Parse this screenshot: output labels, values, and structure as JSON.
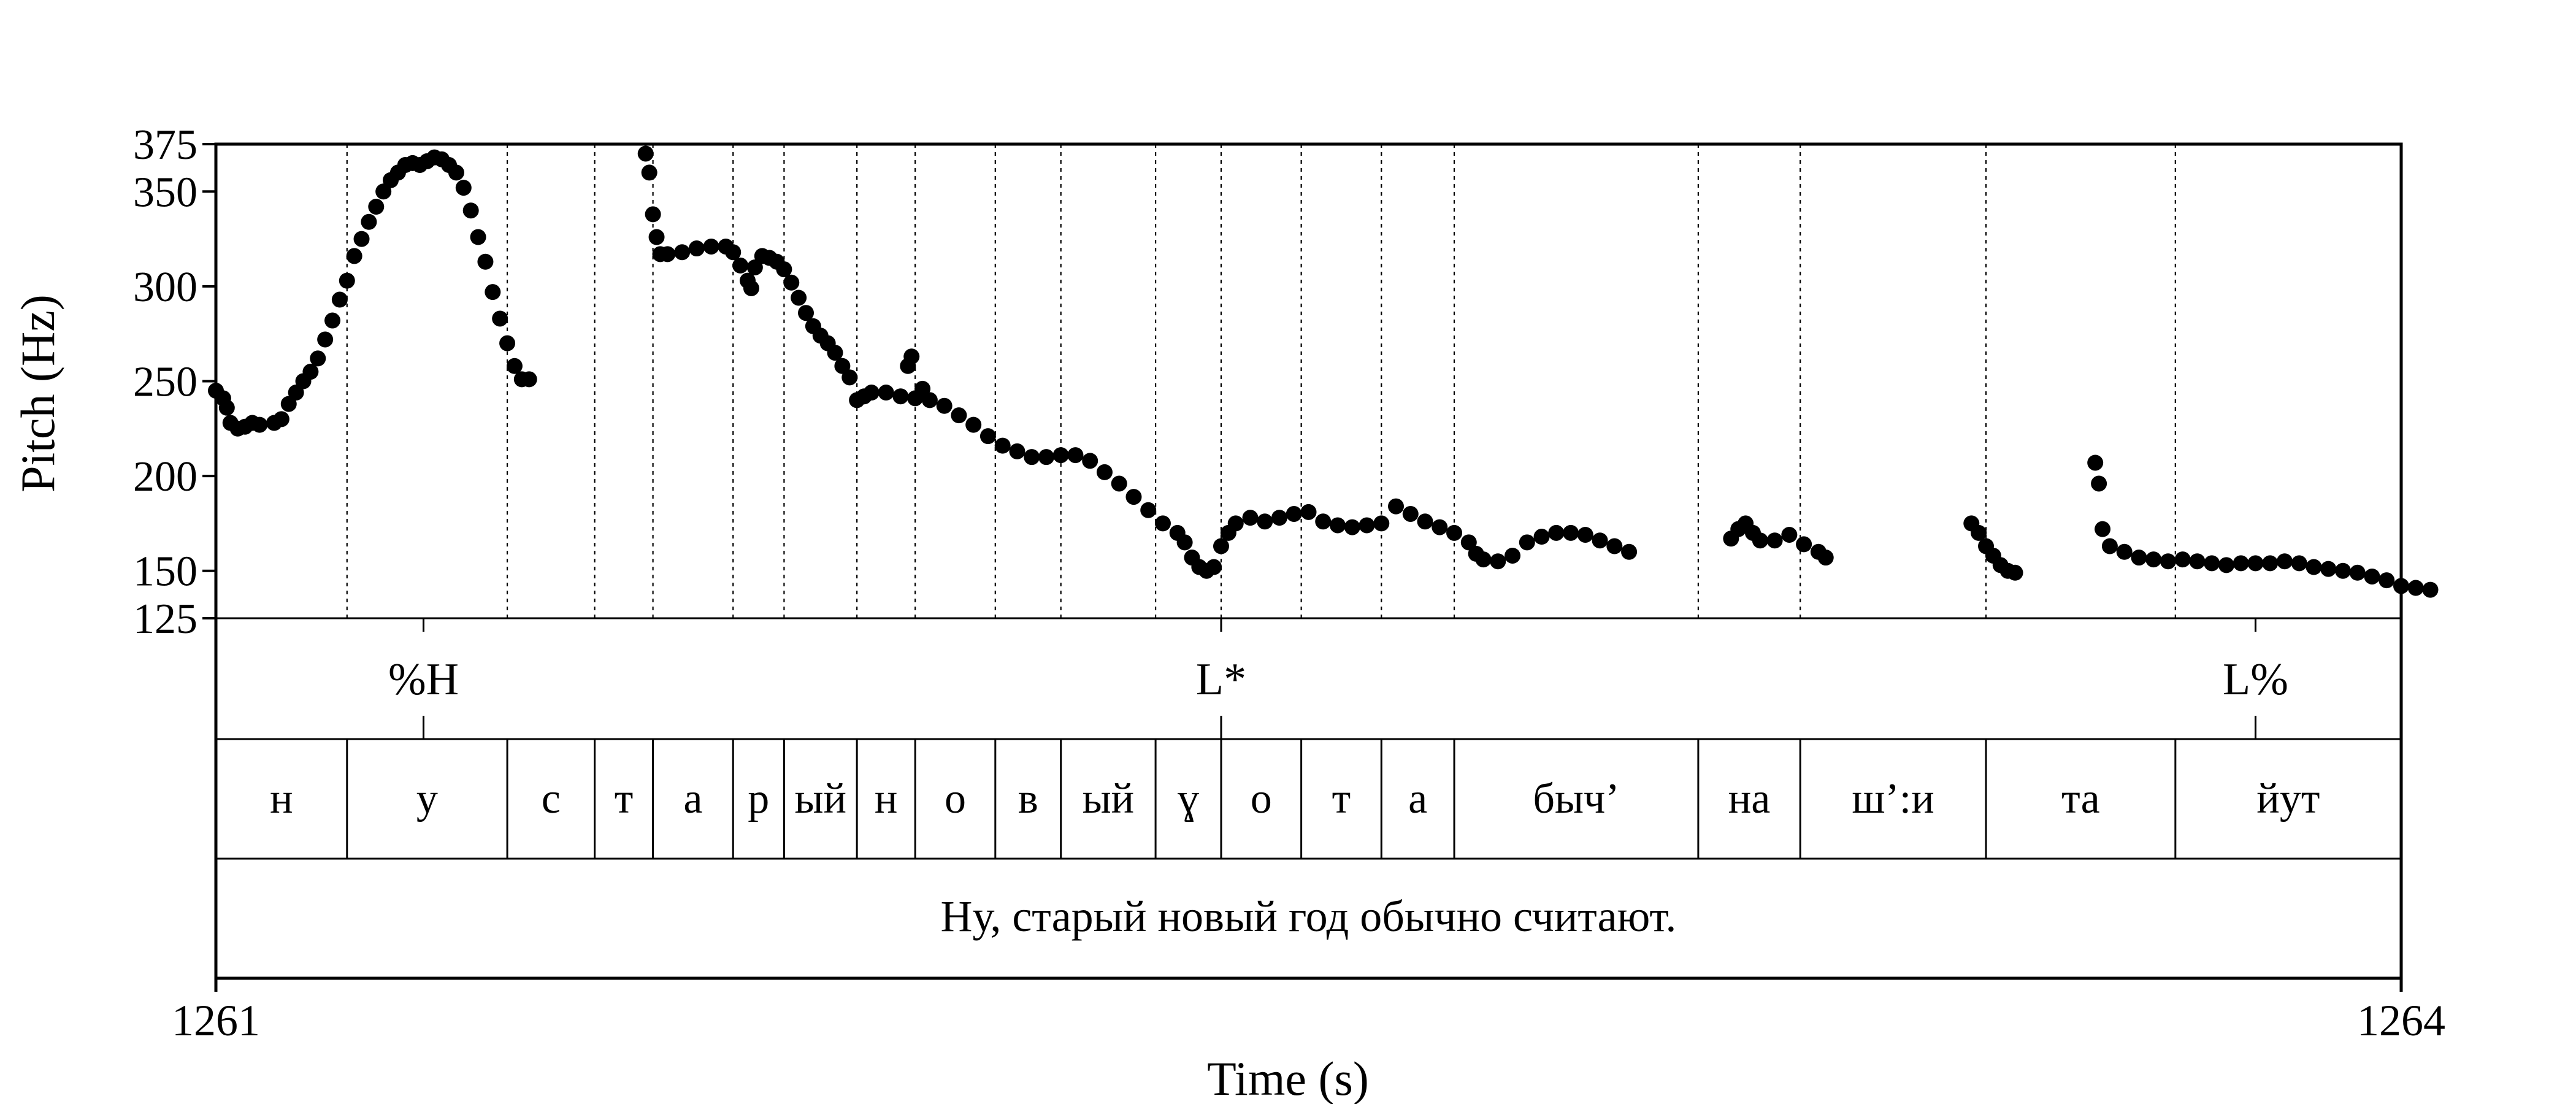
{
  "chart_data": {
    "type": "scatter",
    "title": "",
    "xlabel": "Time (s)",
    "ylabel": "Pitch (Hz)",
    "xlim": [
      1261,
      1264
    ],
    "ylim": [
      125,
      375
    ],
    "x_ticks": [
      "1261",
      "1264"
    ],
    "y_ticks": [
      125,
      150,
      200,
      250,
      300,
      350,
      375
    ],
    "grid": false,
    "series": [
      {
        "points": [
          [
            1261.0,
            245
          ],
          [
            1261.01,
            241
          ],
          [
            1261.015,
            236
          ],
          [
            1261.02,
            228
          ],
          [
            1261.03,
            225
          ],
          [
            1261.04,
            226
          ],
          [
            1261.05,
            228
          ],
          [
            1261.06,
            227
          ],
          [
            1261.08,
            228
          ],
          [
            1261.09,
            230
          ],
          [
            1261.1,
            238
          ],
          [
            1261.11,
            244
          ],
          [
            1261.12,
            250
          ],
          [
            1261.13,
            255
          ],
          [
            1261.14,
            262
          ],
          [
            1261.15,
            272
          ],
          [
            1261.16,
            282
          ],
          [
            1261.17,
            293
          ],
          [
            1261.18,
            303
          ],
          [
            1261.19,
            316
          ],
          [
            1261.2,
            325
          ],
          [
            1261.21,
            334
          ],
          [
            1261.22,
            342
          ],
          [
            1261.23,
            350
          ],
          [
            1261.24,
            356
          ],
          [
            1261.25,
            360
          ],
          [
            1261.26,
            364
          ],
          [
            1261.27,
            365
          ],
          [
            1261.28,
            364
          ],
          [
            1261.29,
            366
          ],
          [
            1261.3,
            368
          ],
          [
            1261.31,
            367
          ],
          [
            1261.32,
            364
          ],
          [
            1261.33,
            360
          ],
          [
            1261.34,
            352
          ],
          [
            1261.35,
            340
          ],
          [
            1261.36,
            326
          ],
          [
            1261.37,
            313
          ],
          [
            1261.38,
            297
          ],
          [
            1261.39,
            283
          ],
          [
            1261.4,
            270
          ],
          [
            1261.41,
            258
          ],
          [
            1261.42,
            251
          ],
          [
            1261.43,
            251
          ],
          [
            1261.59,
            370
          ],
          [
            1261.595,
            360
          ],
          [
            1261.6,
            338
          ],
          [
            1261.605,
            326
          ],
          [
            1261.61,
            317
          ],
          [
            1261.62,
            317
          ],
          [
            1261.64,
            318
          ],
          [
            1261.66,
            320
          ],
          [
            1261.68,
            321
          ],
          [
            1261.7,
            321
          ],
          [
            1261.71,
            318
          ],
          [
            1261.72,
            311
          ],
          [
            1261.73,
            303
          ],
          [
            1261.735,
            299
          ],
          [
            1261.74,
            310
          ],
          [
            1261.75,
            316
          ],
          [
            1261.76,
            315
          ],
          [
            1261.77,
            313
          ],
          [
            1261.78,
            309
          ],
          [
            1261.79,
            302
          ],
          [
            1261.8,
            294
          ],
          [
            1261.81,
            286
          ],
          [
            1261.82,
            279
          ],
          [
            1261.83,
            274
          ],
          [
            1261.84,
            270
          ],
          [
            1261.85,
            265
          ],
          [
            1261.86,
            258
          ],
          [
            1261.87,
            252
          ],
          [
            1261.88,
            240
          ],
          [
            1261.89,
            242
          ],
          [
            1261.9,
            244
          ],
          [
            1261.92,
            244
          ],
          [
            1261.94,
            242
          ],
          [
            1261.96,
            241
          ],
          [
            1261.97,
            246
          ],
          [
            1261.955,
            263
          ],
          [
            1261.95,
            258
          ],
          [
            1261.98,
            240
          ],
          [
            1262.0,
            237
          ],
          [
            1262.02,
            232
          ],
          [
            1262.04,
            227
          ],
          [
            1262.06,
            221
          ],
          [
            1262.08,
            216
          ],
          [
            1262.1,
            213
          ],
          [
            1262.12,
            210
          ],
          [
            1262.14,
            210
          ],
          [
            1262.16,
            211
          ],
          [
            1262.18,
            211
          ],
          [
            1262.2,
            208
          ],
          [
            1262.22,
            202
          ],
          [
            1262.24,
            196
          ],
          [
            1262.26,
            189
          ],
          [
            1262.28,
            182
          ],
          [
            1262.3,
            175
          ],
          [
            1262.32,
            170
          ],
          [
            1262.33,
            165
          ],
          [
            1262.34,
            157
          ],
          [
            1262.35,
            152
          ],
          [
            1262.36,
            150
          ],
          [
            1262.37,
            152
          ],
          [
            1262.38,
            163
          ],
          [
            1262.39,
            170
          ],
          [
            1262.4,
            175
          ],
          [
            1262.42,
            178
          ],
          [
            1262.44,
            176
          ],
          [
            1262.46,
            178
          ],
          [
            1262.48,
            180
          ],
          [
            1262.5,
            181
          ],
          [
            1262.52,
            176
          ],
          [
            1262.54,
            174
          ],
          [
            1262.56,
            173
          ],
          [
            1262.58,
            174
          ],
          [
            1262.6,
            175
          ],
          [
            1262.62,
            184
          ],
          [
            1262.64,
            180
          ],
          [
            1262.66,
            176
          ],
          [
            1262.68,
            173
          ],
          [
            1262.7,
            170
          ],
          [
            1262.72,
            165
          ],
          [
            1262.73,
            159
          ],
          [
            1262.74,
            156
          ],
          [
            1262.76,
            155
          ],
          [
            1262.78,
            158
          ],
          [
            1262.8,
            165
          ],
          [
            1262.82,
            168
          ],
          [
            1262.84,
            170
          ],
          [
            1262.86,
            170
          ],
          [
            1262.88,
            169
          ],
          [
            1262.9,
            166
          ],
          [
            1262.92,
            163
          ],
          [
            1262.94,
            160
          ],
          [
            1263.08,
            167
          ],
          [
            1263.09,
            172
          ],
          [
            1263.1,
            175
          ],
          [
            1263.11,
            170
          ],
          [
            1263.12,
            166
          ],
          [
            1263.14,
            166
          ],
          [
            1263.16,
            169
          ],
          [
            1263.18,
            164
          ],
          [
            1263.2,
            160
          ],
          [
            1263.21,
            157
          ],
          [
            1263.41,
            175
          ],
          [
            1263.42,
            170
          ],
          [
            1263.43,
            163
          ],
          [
            1263.44,
            158
          ],
          [
            1263.45,
            153
          ],
          [
            1263.46,
            150
          ],
          [
            1263.47,
            149
          ],
          [
            1263.58,
            207
          ],
          [
            1263.585,
            196
          ],
          [
            1263.59,
            172
          ],
          [
            1263.6,
            163
          ],
          [
            1263.62,
            160
          ],
          [
            1263.64,
            157
          ],
          [
            1263.66,
            156
          ],
          [
            1263.68,
            155
          ],
          [
            1263.7,
            156
          ],
          [
            1263.72,
            155
          ],
          [
            1263.74,
            154
          ],
          [
            1263.76,
            153
          ],
          [
            1263.78,
            154
          ],
          [
            1263.8,
            154
          ],
          [
            1263.82,
            154
          ],
          [
            1263.84,
            155
          ],
          [
            1263.86,
            154
          ],
          [
            1263.88,
            152
          ],
          [
            1263.9,
            151
          ],
          [
            1263.92,
            150
          ],
          [
            1263.94,
            149
          ],
          [
            1263.96,
            147
          ],
          [
            1263.98,
            145
          ],
          [
            1264.0,
            142
          ],
          [
            1264.02,
            141
          ],
          [
            1264.04,
            140
          ]
        ]
      }
    ],
    "tiers": {
      "tones": [
        {
          "label": "%H",
          "t": 1261.285
        },
        {
          "label": "L*",
          "t": 1262.38
        },
        {
          "label": "L%",
          "t": 1263.8
        }
      ],
      "segments": [
        {
          "label": "н",
          "t0": 1261.0,
          "t1": 1261.18
        },
        {
          "label": "у",
          "t0": 1261.18,
          "t1": 1261.4
        },
        {
          "label": "с",
          "t0": 1261.4,
          "t1": 1261.52
        },
        {
          "label": "т",
          "t0": 1261.52,
          "t1": 1261.6
        },
        {
          "label": "а",
          "t0": 1261.6,
          "t1": 1261.71
        },
        {
          "label": "р",
          "t0": 1261.71,
          "t1": 1261.78
        },
        {
          "label": "ый",
          "t0": 1261.78,
          "t1": 1261.88
        },
        {
          "label": "н",
          "t0": 1261.88,
          "t1": 1261.96
        },
        {
          "label": "о",
          "t0": 1261.96,
          "t1": 1262.07
        },
        {
          "label": "в",
          "t0": 1262.07,
          "t1": 1262.16
        },
        {
          "label": "ый",
          "t0": 1262.16,
          "t1": 1262.29
        },
        {
          "label": "ɣ",
          "t0": 1262.29,
          "t1": 1262.38
        },
        {
          "label": "о",
          "t0": 1262.38,
          "t1": 1262.49
        },
        {
          "label": "т",
          "t0": 1262.49,
          "t1": 1262.6
        },
        {
          "label": "а",
          "t0": 1262.6,
          "t1": 1262.7
        },
        {
          "label": "быч’",
          "t0": 1262.7,
          "t1": 1263.035
        },
        {
          "label": "на",
          "t0": 1263.035,
          "t1": 1263.175
        },
        {
          "label": "ш’:и",
          "t0": 1263.175,
          "t1": 1263.43
        },
        {
          "label": "та",
          "t0": 1263.43,
          "t1": 1263.69
        },
        {
          "label": "йут",
          "t0": 1263.69,
          "t1": 1264.0
        }
      ],
      "sentence": "Ну, старый новый год обычно считают."
    }
  }
}
